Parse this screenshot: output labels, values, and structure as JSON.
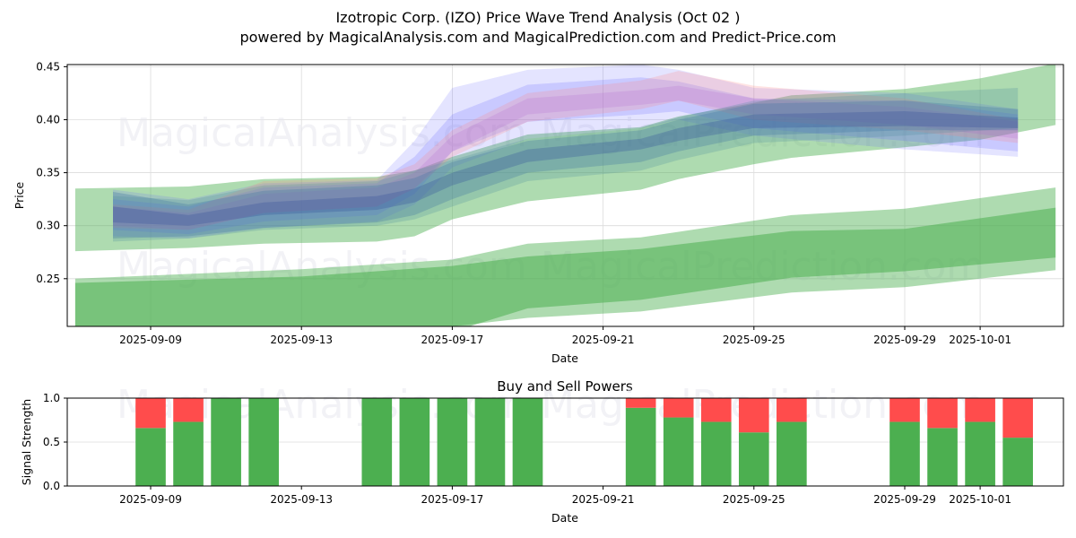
{
  "figure": {
    "title_line1": "Izotropic Corp. (IZO) Price Wave Trend Analysis (Oct 02 )",
    "title_line2": "powered by MagicalAnalysis.com and MagicalPrediction.com and Predict-Price.com",
    "watermarks": [
      "MagicalAnalysis.com",
      "MagicalPrediction.com"
    ]
  },
  "chart_data": [
    {
      "type": "area",
      "title": "",
      "xlabel": "Date",
      "ylabel": "Price",
      "ylim": [
        0.205,
        0.452
      ],
      "xlim": [
        "2025-09-06T18:00",
        "2025-10-03T12:00"
      ],
      "grid": true,
      "yticks": [
        0.25,
        0.3,
        0.35,
        0.4,
        0.45
      ],
      "ytick_labels": [
        "0.25",
        "0.30",
        "0.35",
        "0.40",
        "0.45"
      ],
      "xticks": [
        "2025-09-09",
        "2025-09-13",
        "2025-09-17",
        "2025-09-21",
        "2025-09-25",
        "2025-09-29",
        "2025-10-01"
      ],
      "green_bands": [
        {
          "name": "upper-trend-band",
          "color": "#4caf50",
          "opacity": 0.45,
          "x": [
            "2025-09-07",
            "2025-09-10",
            "2025-09-12",
            "2025-09-15",
            "2025-09-16",
            "2025-09-17",
            "2025-09-19",
            "2025-09-22",
            "2025-09-23",
            "2025-09-25",
            "2025-09-26",
            "2025-09-29",
            "2025-10-01",
            "2025-10-03"
          ],
          "upper": [
            0.335,
            0.337,
            0.344,
            0.346,
            0.352,
            0.365,
            0.386,
            0.393,
            0.403,
            0.416,
            0.423,
            0.429,
            0.439,
            0.453
          ],
          "lower": [
            0.276,
            0.279,
            0.283,
            0.285,
            0.29,
            0.306,
            0.323,
            0.334,
            0.344,
            0.358,
            0.364,
            0.374,
            0.381,
            0.395
          ]
        },
        {
          "name": "lower-trend-band-outer",
          "color": "#4caf50",
          "opacity": 0.45,
          "x": [
            "2025-09-07",
            "2025-09-13",
            "2025-09-17",
            "2025-09-19",
            "2025-09-22",
            "2025-09-26",
            "2025-09-29",
            "2025-10-03"
          ],
          "upper": [
            0.25,
            0.259,
            0.268,
            0.283,
            0.289,
            0.31,
            0.316,
            0.336
          ],
          "lower": [
            0.19,
            0.197,
            0.205,
            0.213,
            0.219,
            0.237,
            0.242,
            0.258
          ]
        },
        {
          "name": "lower-trend-band-inner",
          "color": "#4caf50",
          "opacity": 0.55,
          "x": [
            "2025-09-07",
            "2025-09-13",
            "2025-09-17",
            "2025-09-19",
            "2025-09-22",
            "2025-09-26",
            "2025-09-29",
            "2025-10-03"
          ],
          "upper": [
            0.246,
            0.252,
            0.262,
            0.271,
            0.278,
            0.295,
            0.297,
            0.317
          ],
          "lower": [
            0.18,
            0.19,
            0.2,
            0.222,
            0.23,
            0.251,
            0.257,
            0.27
          ]
        }
      ],
      "prediction_bands": [
        {
          "name": "blue-wave-1",
          "color": "#6a6aff",
          "opacity": 0.18,
          "x": [
            "2025-09-08",
            "2025-09-10",
            "2025-09-12",
            "2025-09-15",
            "2025-09-16",
            "2025-09-17",
            "2025-09-19",
            "2025-09-22",
            "2025-09-23",
            "2025-09-25",
            "2025-09-29",
            "2025-10-02"
          ],
          "upper": [
            0.334,
            0.325,
            0.34,
            0.343,
            0.38,
            0.43,
            0.447,
            0.452,
            0.447,
            0.43,
            0.425,
            0.41
          ],
          "lower": [
            0.29,
            0.288,
            0.298,
            0.304,
            0.32,
            0.355,
            0.382,
            0.392,
            0.4,
            0.385,
            0.372,
            0.365
          ]
        },
        {
          "name": "blue-wave-2",
          "color": "#6a6aff",
          "opacity": 0.22,
          "x": [
            "2025-09-08",
            "2025-09-10",
            "2025-09-12",
            "2025-09-15",
            "2025-09-16",
            "2025-09-17",
            "2025-09-19",
            "2025-09-22",
            "2025-09-23",
            "2025-09-25",
            "2025-09-29",
            "2025-10-02"
          ],
          "upper": [
            0.325,
            0.318,
            0.336,
            0.34,
            0.365,
            0.405,
            0.433,
            0.44,
            0.436,
            0.42,
            0.418,
            0.405
          ],
          "lower": [
            0.296,
            0.292,
            0.304,
            0.31,
            0.33,
            0.37,
            0.398,
            0.405,
            0.408,
            0.392,
            0.38,
            0.37
          ]
        },
        {
          "name": "red-wave-1",
          "color": "#ff8080",
          "opacity": 0.22,
          "x": [
            "2025-09-08",
            "2025-09-10",
            "2025-09-12",
            "2025-09-15",
            "2025-09-16",
            "2025-09-17",
            "2025-09-19",
            "2025-09-22",
            "2025-09-23",
            "2025-09-25",
            "2025-09-29",
            "2025-10-02"
          ],
          "upper": [
            0.32,
            0.315,
            0.342,
            0.345,
            0.358,
            0.39,
            0.425,
            0.437,
            0.446,
            0.432,
            0.42,
            0.4
          ],
          "lower": [
            0.298,
            0.296,
            0.312,
            0.318,
            0.335,
            0.365,
            0.398,
            0.41,
            0.418,
            0.4,
            0.39,
            0.378
          ]
        },
        {
          "name": "purple-wave-1",
          "color": "#b060d0",
          "opacity": 0.2,
          "x": [
            "2025-09-08",
            "2025-09-10",
            "2025-09-12",
            "2025-09-15",
            "2025-09-16",
            "2025-09-17",
            "2025-09-19",
            "2025-09-22",
            "2025-09-23",
            "2025-09-25",
            "2025-09-29",
            "2025-10-02"
          ],
          "upper": [
            0.318,
            0.312,
            0.33,
            0.336,
            0.35,
            0.385,
            0.42,
            0.428,
            0.432,
            0.42,
            0.412,
            0.398
          ],
          "lower": [
            0.3,
            0.296,
            0.312,
            0.318,
            0.335,
            0.37,
            0.405,
            0.414,
            0.418,
            0.405,
            0.395,
            0.382
          ]
        },
        {
          "name": "steel-wave-1",
          "color": "#3a6ea5",
          "opacity": 0.3,
          "x": [
            "2025-09-08",
            "2025-09-10",
            "2025-09-12",
            "2025-09-15",
            "2025-09-16",
            "2025-09-17",
            "2025-09-19",
            "2025-09-22",
            "2025-09-23",
            "2025-09-25",
            "2025-09-29",
            "2025-10-02"
          ],
          "upper": [
            0.332,
            0.32,
            0.333,
            0.338,
            0.345,
            0.36,
            0.38,
            0.39,
            0.4,
            0.415,
            0.418,
            0.41
          ],
          "lower": [
            0.288,
            0.29,
            0.298,
            0.303,
            0.31,
            0.325,
            0.35,
            0.36,
            0.37,
            0.385,
            0.39,
            0.39
          ]
        },
        {
          "name": "navy-wave-1",
          "color": "#2a3a9a",
          "opacity": 0.3,
          "x": [
            "2025-09-08",
            "2025-09-10",
            "2025-09-12",
            "2025-09-15",
            "2025-09-16",
            "2025-09-17",
            "2025-09-19",
            "2025-09-22",
            "2025-09-23",
            "2025-09-25",
            "2025-09-29",
            "2025-10-02"
          ],
          "upper": [
            0.318,
            0.31,
            0.322,
            0.328,
            0.335,
            0.35,
            0.372,
            0.382,
            0.392,
            0.405,
            0.408,
            0.402
          ],
          "lower": [
            0.303,
            0.3,
            0.31,
            0.315,
            0.322,
            0.338,
            0.36,
            0.372,
            0.38,
            0.392,
            0.394,
            0.392
          ]
        },
        {
          "name": "teal-wave-1",
          "color": "#4a8a9a",
          "opacity": 0.25,
          "x": [
            "2025-09-08",
            "2025-09-10",
            "2025-09-12",
            "2025-09-15",
            "2025-09-16",
            "2025-09-17",
            "2025-09-19",
            "2025-09-22",
            "2025-09-23",
            "2025-09-25",
            "2025-09-29",
            "2025-10-02"
          ],
          "upper": [
            0.328,
            0.324,
            0.338,
            0.342,
            0.352,
            0.362,
            0.382,
            0.392,
            0.402,
            0.418,
            0.425,
            0.43
          ],
          "lower": [
            0.285,
            0.288,
            0.296,
            0.3,
            0.306,
            0.318,
            0.342,
            0.352,
            0.362,
            0.378,
            0.385,
            0.392
          ]
        }
      ]
    },
    {
      "type": "bar",
      "title": "Buy and Sell Powers",
      "xlabel": "Date",
      "ylabel": "Signal Strength",
      "ylim": [
        0,
        1
      ],
      "yticks": [
        0.0,
        0.5,
        1.0
      ],
      "ytick_labels": [
        "0.0",
        "0.5",
        "1.0"
      ],
      "xticks": [
        "2025-09-09",
        "2025-09-13",
        "2025-09-17",
        "2025-09-21",
        "2025-09-25",
        "2025-09-29",
        "2025-10-01"
      ],
      "grid": true,
      "series": [
        {
          "name": "Buy",
          "color": "#4caf50"
        },
        {
          "name": "Sell",
          "color": "#ff4c4c"
        }
      ],
      "categories": [
        "2025-09-09",
        "2025-09-10",
        "2025-09-11",
        "2025-09-12",
        "2025-09-15",
        "2025-09-16",
        "2025-09-17",
        "2025-09-18",
        "2025-09-19",
        "2025-09-22",
        "2025-09-23",
        "2025-09-24",
        "2025-09-25",
        "2025-09-26",
        "2025-09-29",
        "2025-09-30",
        "2025-10-01",
        "2025-10-02"
      ],
      "buy": [
        0.66,
        0.73,
        1.0,
        1.0,
        1.0,
        1.0,
        1.0,
        1.0,
        1.0,
        0.89,
        0.78,
        0.73,
        0.61,
        0.73,
        0.73,
        0.66,
        0.73,
        0.55
      ],
      "sell": [
        0.34,
        0.27,
        0.0,
        0.0,
        0.0,
        0.0,
        0.0,
        0.0,
        0.0,
        0.11,
        0.22,
        0.27,
        0.39,
        0.27,
        0.27,
        0.34,
        0.27,
        0.45
      ]
    }
  ]
}
